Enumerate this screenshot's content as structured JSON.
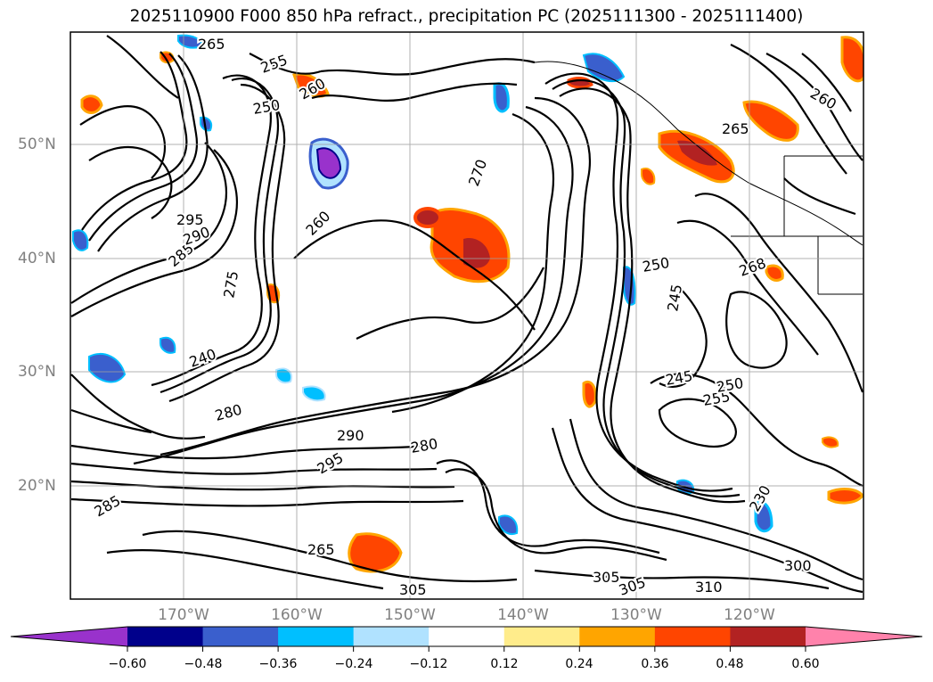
{
  "title": "2025110900 F000 850 hPa refract., precipitation PC (2025111300 - 2025111400)",
  "map": {
    "lat_labels": [
      "50°N",
      "40°N",
      "30°N",
      "20°N"
    ],
    "lon_labels": [
      "170°W",
      "160°W",
      "150°W",
      "140°W",
      "130°W",
      "120°W"
    ],
    "contour_labels": [
      "265",
      "255",
      "250",
      "260",
      "275",
      "285",
      "295",
      "290",
      "270",
      "265",
      "260",
      "268",
      "250",
      "245",
      "260",
      "240",
      "280",
      "290",
      "280",
      "295",
      "265",
      "305",
      "300",
      "305",
      "305",
      "310",
      "245",
      "255",
      "250",
      "230",
      "285"
    ],
    "line_color": "#000000",
    "grid_color": "#9e9e9e"
  },
  "colorbar": {
    "ticks": [
      "−0.60",
      "−0.48",
      "−0.36",
      "−0.24",
      "−0.12",
      "0.12",
      "0.24",
      "0.36",
      "0.48",
      "0.60"
    ],
    "colors": [
      "#9932cc",
      "#00008b",
      "#3a5fcd",
      "#00bfff",
      "#b0e2ff",
      "#ffffff",
      "#ffec8b",
      "#ffa500",
      "#ff4500",
      "#b22222",
      "#ff82ab"
    ]
  }
}
